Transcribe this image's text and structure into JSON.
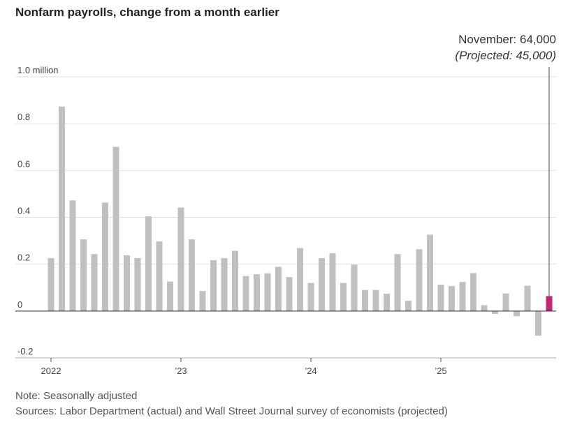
{
  "chart_data": {
    "type": "bar",
    "title": "Nonfarm payrolls, change from a month earlier",
    "ylim": [
      -0.2,
      1.0
    ],
    "y_ticks": [
      {
        "value": 1.0,
        "label": "1.0 million"
      },
      {
        "value": 0.8,
        "label": "0.8"
      },
      {
        "value": 0.6,
        "label": "0.6"
      },
      {
        "value": 0.4,
        "label": "0.4"
      },
      {
        "value": 0.2,
        "label": "0.2"
      },
      {
        "value": 0,
        "label": "0"
      },
      {
        "value": -0.2,
        "label": "-0.2"
      }
    ],
    "x_ticks": [
      {
        "index": 0,
        "label": "2022"
      },
      {
        "index": 12,
        "label": "’23"
      },
      {
        "index": 24,
        "label": "’24"
      },
      {
        "index": 36,
        "label": "’25"
      }
    ],
    "grid": true,
    "series": [
      {
        "values": [
          0.226,
          0.873,
          0.472,
          0.306,
          0.243,
          0.463,
          0.701,
          0.238,
          0.226,
          0.404,
          0.297,
          0.126,
          0.442,
          0.306,
          0.086,
          0.217,
          0.226,
          0.257,
          0.149,
          0.157,
          0.161,
          0.189,
          0.145,
          0.269,
          0.12,
          0.226,
          0.247,
          0.12,
          0.198,
          0.09,
          0.09,
          0.074,
          0.243,
          0.044,
          0.264,
          0.326,
          0.113,
          0.107,
          0.124,
          0.162,
          0.025,
          -0.012,
          0.075,
          -0.022,
          0.108,
          -0.105,
          0.064
        ]
      }
    ],
    "highlight": {
      "index": 46,
      "color": "#c42a71"
    },
    "bar_color": "#c0c0c0",
    "annotation": {
      "line1": "November: 64,000",
      "line2": "(Projected: 45,000)"
    },
    "note": "Note: Seasonally adjusted",
    "source": "Sources: Labor Department (actual) and Wall Street Journal survey of economists (projected)"
  }
}
